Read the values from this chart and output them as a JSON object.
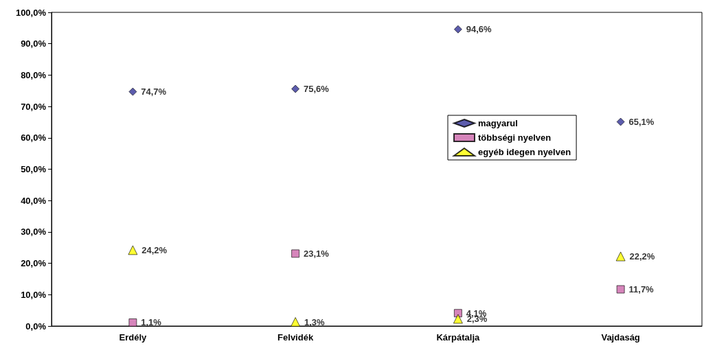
{
  "chart_data": {
    "type": "scatter",
    "categories": [
      "Erdély",
      "Felvidék",
      "Kárpátalja",
      "Vajdaság"
    ],
    "series": [
      {
        "name": "magyarul",
        "color": "#333399",
        "marker": "diamond",
        "values": [
          74.7,
          75.6,
          94.6,
          65.1
        ],
        "value_labels": [
          "74,7%",
          "75,6%",
          "94,6%",
          "65,1%"
        ]
      },
      {
        "name": "többségi nyelven",
        "color": "#cc66aa",
        "marker": "square",
        "values": [
          1.1,
          23.1,
          4.1,
          11.7
        ],
        "value_labels": [
          "1,1%",
          "23,1%",
          "4,1%",
          "11,7%"
        ]
      },
      {
        "name": "egyéb idegen nyelven",
        "color": "#ffff00",
        "marker": "triangle",
        "values": [
          24.2,
          1.3,
          2.3,
          22.2
        ],
        "value_labels": [
          "24,2%",
          "1,3%",
          "2,3%",
          "22,2%"
        ]
      }
    ],
    "ylim": [
      0,
      100
    ],
    "yticks": [
      {
        "value": 0,
        "label": "0,0%"
      },
      {
        "value": 10,
        "label": "10,0%"
      },
      {
        "value": 20,
        "label": "20,0%"
      },
      {
        "value": 30,
        "label": "30,0%"
      },
      {
        "value": 40,
        "label": "40,0%"
      },
      {
        "value": 50,
        "label": "50,0%"
      },
      {
        "value": 60,
        "label": "60,0%"
      },
      {
        "value": 70,
        "label": "70,0%"
      },
      {
        "value": 80,
        "label": "80,0%"
      },
      {
        "value": 90,
        "label": "90,0%"
      },
      {
        "value": 100,
        "label": "100,0%"
      }
    ],
    "legend": "right"
  }
}
